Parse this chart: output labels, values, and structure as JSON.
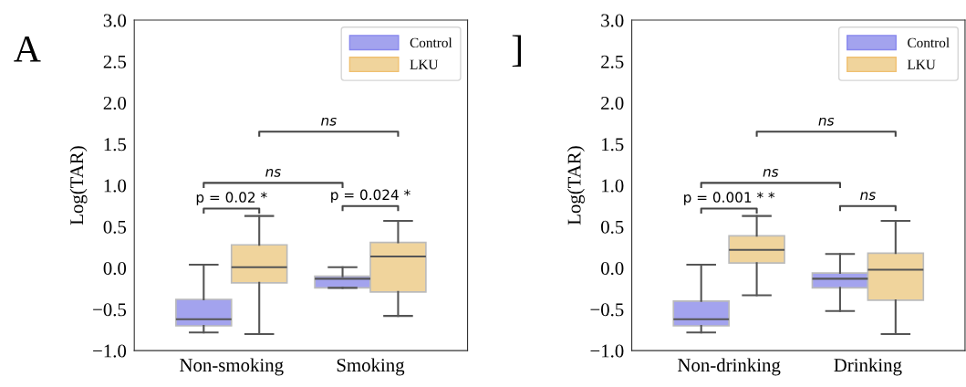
{
  "chart_data": [
    {
      "type": "box",
      "title": "A",
      "ylabel": "Log(TAR)",
      "categories": [
        "Non-smoking",
        "Smoking"
      ],
      "ylim": [
        -1.0,
        3.0
      ],
      "yticks": [
        {
          "value": -1.0,
          "label": "−1.0"
        },
        {
          "value": -0.5,
          "label": "−0.5"
        },
        {
          "value": 0.0,
          "label": "0.0"
        },
        {
          "value": 0.5,
          "label": "0.5"
        },
        {
          "value": 1.0,
          "label": "1.0"
        },
        {
          "value": 1.5,
          "label": "1.5"
        },
        {
          "value": 2.0,
          "label": "2.0"
        },
        {
          "value": 2.5,
          "label": "2.5"
        },
        {
          "value": 3.0,
          "label": "3.0"
        }
      ],
      "legend": "top right",
      "grid": false,
      "annotations": [
        "p = 0.02 *",
        "p = 0.024 *",
        "ns",
        "ns"
      ],
      "series": [
        {
          "name": "Control",
          "color": "#a3a3ee",
          "boxes": [
            {
              "low": -0.78,
              "q1": -0.7,
              "median": -0.62,
              "q3": -0.38,
              "high": 0.04
            },
            {
              "low": -0.24,
              "q1": -0.24,
              "median": -0.13,
              "q3": -0.1,
              "high": 0.01
            }
          ]
        },
        {
          "name": "LKU",
          "color": "#f0d49c",
          "boxes": [
            {
              "low": -0.8,
              "q1": -0.18,
              "median": 0.01,
              "q3": 0.28,
              "high": 0.63
            },
            {
              "low": -0.58,
              "q1": -0.29,
              "median": 0.14,
              "q3": 0.31,
              "high": 0.57
            }
          ]
        }
      ]
    },
    {
      "type": "box",
      "title": "]",
      "ylabel": "Log(TAR)",
      "categories": [
        "Non-drinking",
        "Drinking"
      ],
      "ylim": [
        -1.0,
        3.0
      ],
      "yticks": [
        {
          "value": -1.0,
          "label": "−1.0"
        },
        {
          "value": -0.5,
          "label": "−0.5"
        },
        {
          "value": 0.0,
          "label": "0.0"
        },
        {
          "value": 0.5,
          "label": "0.5"
        },
        {
          "value": 1.0,
          "label": "1.0"
        },
        {
          "value": 1.5,
          "label": "1.5"
        },
        {
          "value": 2.0,
          "label": "2.0"
        },
        {
          "value": 2.5,
          "label": "2.5"
        },
        {
          "value": 3.0,
          "label": "3.0"
        }
      ],
      "legend": "top right",
      "grid": false,
      "annotations": [
        "p = 0.001 * *",
        "ns",
        "ns",
        "ns"
      ],
      "series": [
        {
          "name": "Control",
          "color": "#a3a3ee",
          "boxes": [
            {
              "low": -0.78,
              "q1": -0.7,
              "median": -0.62,
              "q3": -0.4,
              "high": 0.04
            },
            {
              "low": -0.52,
              "q1": -0.24,
              "median": -0.13,
              "q3": -0.06,
              "high": 0.17
            }
          ]
        },
        {
          "name": "LKU",
          "color": "#f0d49c",
          "boxes": [
            {
              "low": -0.33,
              "q1": 0.06,
              "median": 0.22,
              "q3": 0.39,
              "high": 0.63
            },
            {
              "low": -0.8,
              "q1": -0.39,
              "median": -0.02,
              "q3": 0.18,
              "high": 0.57
            }
          ]
        }
      ]
    }
  ]
}
